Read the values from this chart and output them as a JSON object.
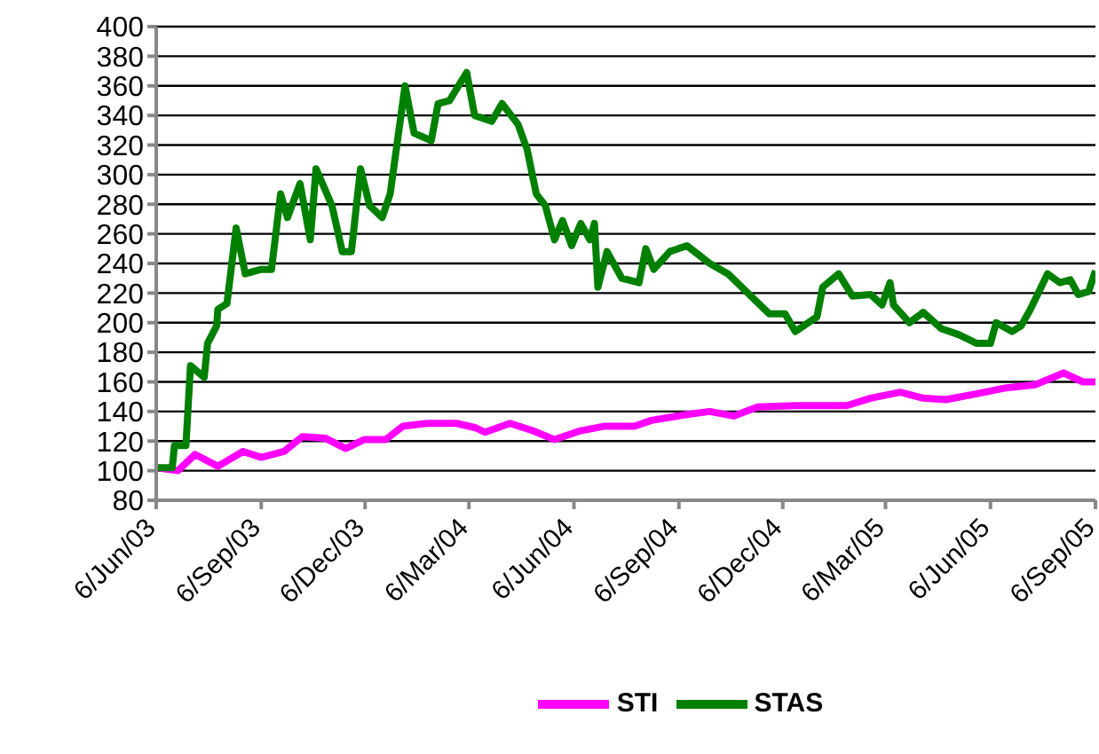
{
  "chart_data": {
    "type": "line",
    "xlim": [
      "2003-06-06",
      "2005-09-06"
    ],
    "xticks": [
      {
        "value": "2003-06-06",
        "label": "6/Jun/03"
      },
      {
        "value": "2003-09-06",
        "label": "6/Sep/03"
      },
      {
        "value": "2003-12-06",
        "label": "6/Dec/03"
      },
      {
        "value": "2004-03-06",
        "label": "6/Mar/04"
      },
      {
        "value": "2004-06-06",
        "label": "6/Jun/04"
      },
      {
        "value": "2004-09-06",
        "label": "6/Sep/04"
      },
      {
        "value": "2004-12-06",
        "label": "6/Dec/04"
      },
      {
        "value": "2005-03-06",
        "label": "6/Mar/05"
      },
      {
        "value": "2005-06-06",
        "label": "6/Jun/05"
      },
      {
        "value": "2005-09-06",
        "label": "6/Sep/05"
      }
    ],
    "ylim": [
      80,
      400
    ],
    "yticks": [
      80,
      100,
      120,
      140,
      160,
      180,
      200,
      220,
      240,
      260,
      280,
      300,
      320,
      340,
      360,
      380,
      400
    ],
    "grid": "y",
    "legend": "bottom",
    "marker": "none",
    "line_style": "solid",
    "series": [
      {
        "name": "STI",
        "color": "#ff00ff",
        "x": [
          "2003-06-06",
          "2003-06-25",
          "2003-07-10",
          "2003-07-30",
          "2003-08-21",
          "2003-09-06",
          "2003-09-26",
          "2003-10-12",
          "2003-11-01",
          "2003-11-19",
          "2003-12-05",
          "2003-12-24",
          "2004-01-08",
          "2004-01-29",
          "2004-02-24",
          "2004-03-12",
          "2004-03-20",
          "2004-04-11",
          "2004-05-01",
          "2004-05-20",
          "2004-06-12",
          "2004-07-02",
          "2004-07-29",
          "2004-08-13",
          "2004-09-13",
          "2004-10-03",
          "2004-10-24",
          "2004-11-14",
          "2004-12-17",
          "2005-01-05",
          "2005-01-31",
          "2005-02-21",
          "2005-03-19",
          "2005-04-08",
          "2005-04-28",
          "2005-05-25",
          "2005-06-20",
          "2005-07-15",
          "2005-08-09",
          "2005-08-26",
          "2005-09-06"
        ],
        "values": [
          102,
          100,
          111,
          103,
          113,
          109,
          113,
          123,
          122,
          115,
          121,
          121,
          130,
          132,
          132,
          129,
          126,
          132,
          127,
          121,
          127,
          130,
          130,
          134,
          138,
          140,
          137,
          143,
          144,
          144,
          144,
          149,
          153,
          149,
          148,
          152,
          156,
          158,
          166,
          160,
          160
        ]
      },
      {
        "name": "STAS",
        "color": "#008000",
        "x": [
          "2003-06-06",
          "2003-06-20",
          "2003-06-22",
          "2003-07-02",
          "2003-07-06",
          "2003-07-18",
          "2003-07-21",
          "2003-07-29",
          "2003-07-30",
          "2003-08-07",
          "2003-08-15",
          "2003-08-23",
          "2003-09-06",
          "2003-09-15",
          "2003-09-23",
          "2003-09-29",
          "2003-10-10",
          "2003-10-19",
          "2003-10-24",
          "2003-11-07",
          "2003-11-16",
          "2003-11-24",
          "2003-12-02",
          "2003-12-10",
          "2003-12-21",
          "2003-12-28",
          "2004-01-10",
          "2004-01-18",
          "2004-02-02",
          "2004-02-08",
          "2004-02-18",
          "2004-03-04",
          "2004-03-11",
          "2004-03-26",
          "2004-04-04",
          "2004-04-18",
          "2004-04-26",
          "2004-05-04",
          "2004-05-12",
          "2004-05-20",
          "2004-05-27",
          "2004-06-04",
          "2004-06-12",
          "2004-06-20",
          "2004-06-24",
          "2004-06-27",
          "2004-07-05",
          "2004-07-18",
          "2004-08-02",
          "2004-08-08",
          "2004-08-15",
          "2004-08-29",
          "2004-09-13",
          "2004-10-03",
          "2004-10-19",
          "2004-11-04",
          "2004-11-24",
          "2004-12-08",
          "2004-12-17",
          "2005-01-05",
          "2005-01-10",
          "2005-01-24",
          "2005-02-05",
          "2005-02-21",
          "2005-03-03",
          "2005-03-10",
          "2005-03-13",
          "2005-03-27",
          "2005-04-08",
          "2005-04-24",
          "2005-05-09",
          "2005-05-25",
          "2005-06-06",
          "2005-06-11",
          "2005-06-25",
          "2005-07-03",
          "2005-07-11",
          "2005-07-26",
          "2005-08-06",
          "2005-08-15",
          "2005-08-22",
          "2005-08-31",
          "2005-09-06"
        ],
        "values": [
          102,
          102,
          117,
          117,
          171,
          163,
          186,
          198,
          209,
          213,
          264,
          233,
          236,
          236,
          287,
          271,
          294,
          256,
          304,
          279,
          248,
          248,
          304,
          279,
          271,
          287,
          360,
          328,
          323,
          348,
          350,
          369,
          340,
          336,
          348,
          334,
          317,
          287,
          279,
          256,
          269,
          252,
          267,
          256,
          267,
          224,
          248,
          230,
          227,
          250,
          236,
          248,
          252,
          240,
          233,
          221,
          206,
          206,
          194,
          204,
          224,
          233,
          218,
          219,
          212,
          227,
          212,
          200,
          207,
          196,
          192,
          186,
          186,
          200,
          194,
          198,
          209,
          233,
          227,
          229,
          219,
          221,
          235
        ]
      }
    ]
  }
}
